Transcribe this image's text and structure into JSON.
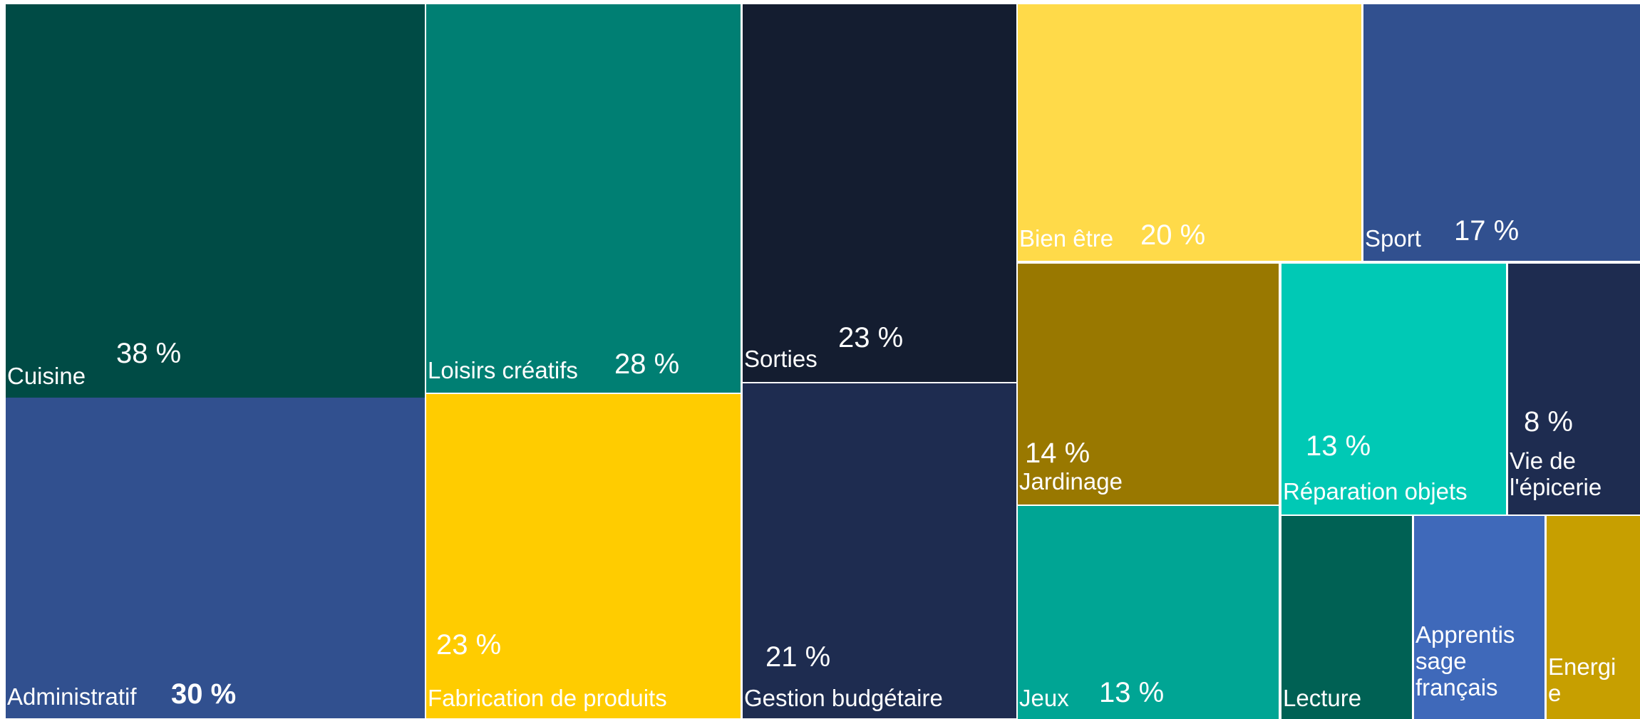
{
  "chart_data": {
    "type": "treemap",
    "items": [
      {
        "label": "Cuisine",
        "value_label": "38 %",
        "value": 38,
        "color": "#004B45"
      },
      {
        "label": "Administratif",
        "value_label": "30 %",
        "value": 30,
        "color": "#31508F",
        "emphasis": "bold"
      },
      {
        "label": "Loisirs créatifs",
        "value_label": "28 %",
        "value": 28,
        "color": "#007F73"
      },
      {
        "label": "Fabrication de produits",
        "value_label": "23 %",
        "value": 23,
        "color": "#FFCC00"
      },
      {
        "label": "Sorties",
        "value_label": "23 %",
        "value": 23,
        "color": "#141D30"
      },
      {
        "label": "Gestion budgétaire",
        "value_label": "21 %",
        "value": 21,
        "color": "#1E2C50"
      },
      {
        "label": "Bien être",
        "value_label": "20 %",
        "value": 20,
        "color": "#FFDA49"
      },
      {
        "label": "Sport",
        "value_label": "17 %",
        "value": 17,
        "color": "#31508F"
      },
      {
        "label": "Jardinage",
        "value_label": "14 %",
        "value": 14,
        "color": "#997800"
      },
      {
        "label": "Réparation objets",
        "value_label": "13 %",
        "value": 13,
        "color": "#00C9B5"
      },
      {
        "label": "Vie de l'épicerie",
        "value_label": "8 %",
        "value": 8,
        "color": "#1E2C50"
      },
      {
        "label": "Jeux",
        "value_label": "13 %",
        "value": 13,
        "color": "#00A594"
      },
      {
        "label": "Lecture",
        "value_label": "",
        "value": null,
        "color": "#006154"
      },
      {
        "label": "Apprentissage français",
        "value_label": "",
        "value": null,
        "color": "#3F69BA"
      },
      {
        "label": "Energie",
        "value_label": "",
        "value": null,
        "color": "#C79F00"
      }
    ]
  }
}
